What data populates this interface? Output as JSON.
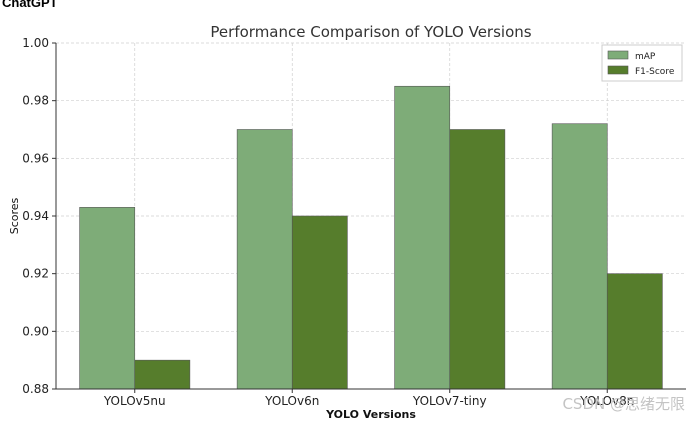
{
  "header": {
    "caption": "ChatGPT"
  },
  "watermark": "CSDN @思绪无限",
  "chart_data": {
    "type": "bar",
    "title": "Performance Comparison of YOLO Versions",
    "xlabel": "YOLO Versions",
    "ylabel": "Scores",
    "categories": [
      "YOLOv5nu",
      "YOLOv6n",
      "YOLOv7-tiny",
      "YOLOv8n"
    ],
    "series": [
      {
        "name": "mAP",
        "values": [
          0.943,
          0.97,
          0.985,
          0.972
        ],
        "color": "#7eac78"
      },
      {
        "name": "F1-Score",
        "values": [
          0.89,
          0.94,
          0.97,
          0.92
        ],
        "color": "#567d2c"
      }
    ],
    "ylim": [
      0.88,
      1.0
    ],
    "yticks": [
      "0.88",
      "0.90",
      "0.92",
      "0.94",
      "0.96",
      "0.98",
      "1.00"
    ],
    "grid": true,
    "legend": "top-right"
  }
}
